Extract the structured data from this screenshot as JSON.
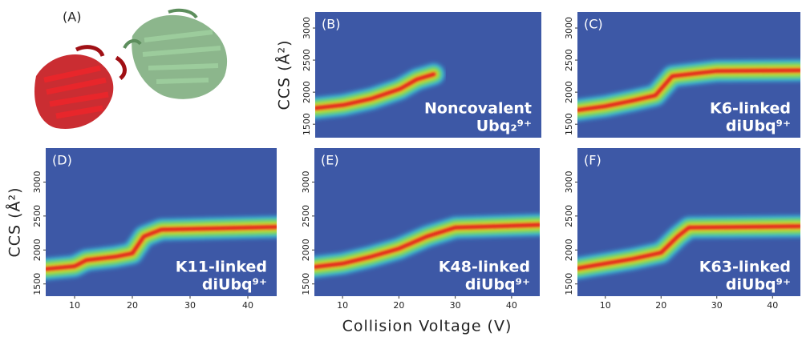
{
  "panel_a": {
    "label": "(A)"
  },
  "chart_data": [
    {
      "type": "ridge",
      "label": "(B)",
      "ylabel": "CCS (Å²)",
      "annotation": [
        "Noncovalent",
        "Ubq₂⁹⁺"
      ],
      "x": [
        5,
        10,
        15,
        20,
        23,
        26
      ],
      "values": [
        1750,
        1800,
        1900,
        2050,
        2200,
        2280
      ],
      "xlim": [
        5,
        45
      ],
      "ylim": [
        1290,
        3250
      ],
      "yticks": [
        1500,
        2000,
        2500,
        3000
      ]
    },
    {
      "type": "ridge",
      "label": "(C)",
      "annotation": [
        "K6-linked",
        "diUbq⁹⁺"
      ],
      "x": [
        5,
        10,
        15,
        19,
        22,
        30,
        45
      ],
      "values": [
        1720,
        1780,
        1870,
        1950,
        2250,
        2330,
        2340
      ],
      "xlim": [
        5,
        45
      ],
      "ylim": [
        1290,
        3250
      ],
      "yticks": [
        1500,
        2000,
        2500,
        3000
      ]
    },
    {
      "type": "ridge",
      "label": "(D)",
      "ylabel": "CCS (Å²)",
      "annotation": [
        "K11-linked",
        "diUbq⁹⁺"
      ],
      "x": [
        5,
        10,
        12,
        17,
        20,
        22,
        25,
        45
      ],
      "values": [
        1720,
        1760,
        1850,
        1900,
        1950,
        2200,
        2300,
        2340
      ],
      "xlim": [
        5,
        45
      ],
      "ylim": [
        1320,
        3500
      ],
      "xticks": [
        10,
        20,
        30,
        40
      ],
      "yticks": [
        1500,
        2000,
        2500,
        3000
      ]
    },
    {
      "type": "ridge",
      "label": "(E)",
      "xlabel": "Collision Voltage (V)",
      "annotation": [
        "K48-linked",
        "diUbq⁹⁺"
      ],
      "x": [
        5,
        10,
        15,
        20,
        25,
        30,
        45
      ],
      "values": [
        1750,
        1800,
        1900,
        2020,
        2200,
        2330,
        2370
      ],
      "xlim": [
        5,
        45
      ],
      "ylim": [
        1320,
        3500
      ],
      "xticks": [
        10,
        20,
        30,
        40
      ],
      "yticks": [
        1500,
        2000,
        2500,
        3000
      ]
    },
    {
      "type": "ridge",
      "label": "(F)",
      "annotation": [
        "K63-linked",
        "diUbq⁹⁺"
      ],
      "x": [
        5,
        10,
        15,
        20,
        23,
        25,
        45
      ],
      "values": [
        1730,
        1800,
        1870,
        1960,
        2200,
        2330,
        2350
      ],
      "xlim": [
        5,
        45
      ],
      "ylim": [
        1320,
        3500
      ],
      "xticks": [
        10,
        20,
        30,
        40
      ],
      "yticks": [
        1500,
        2000,
        2500,
        3000
      ]
    }
  ]
}
